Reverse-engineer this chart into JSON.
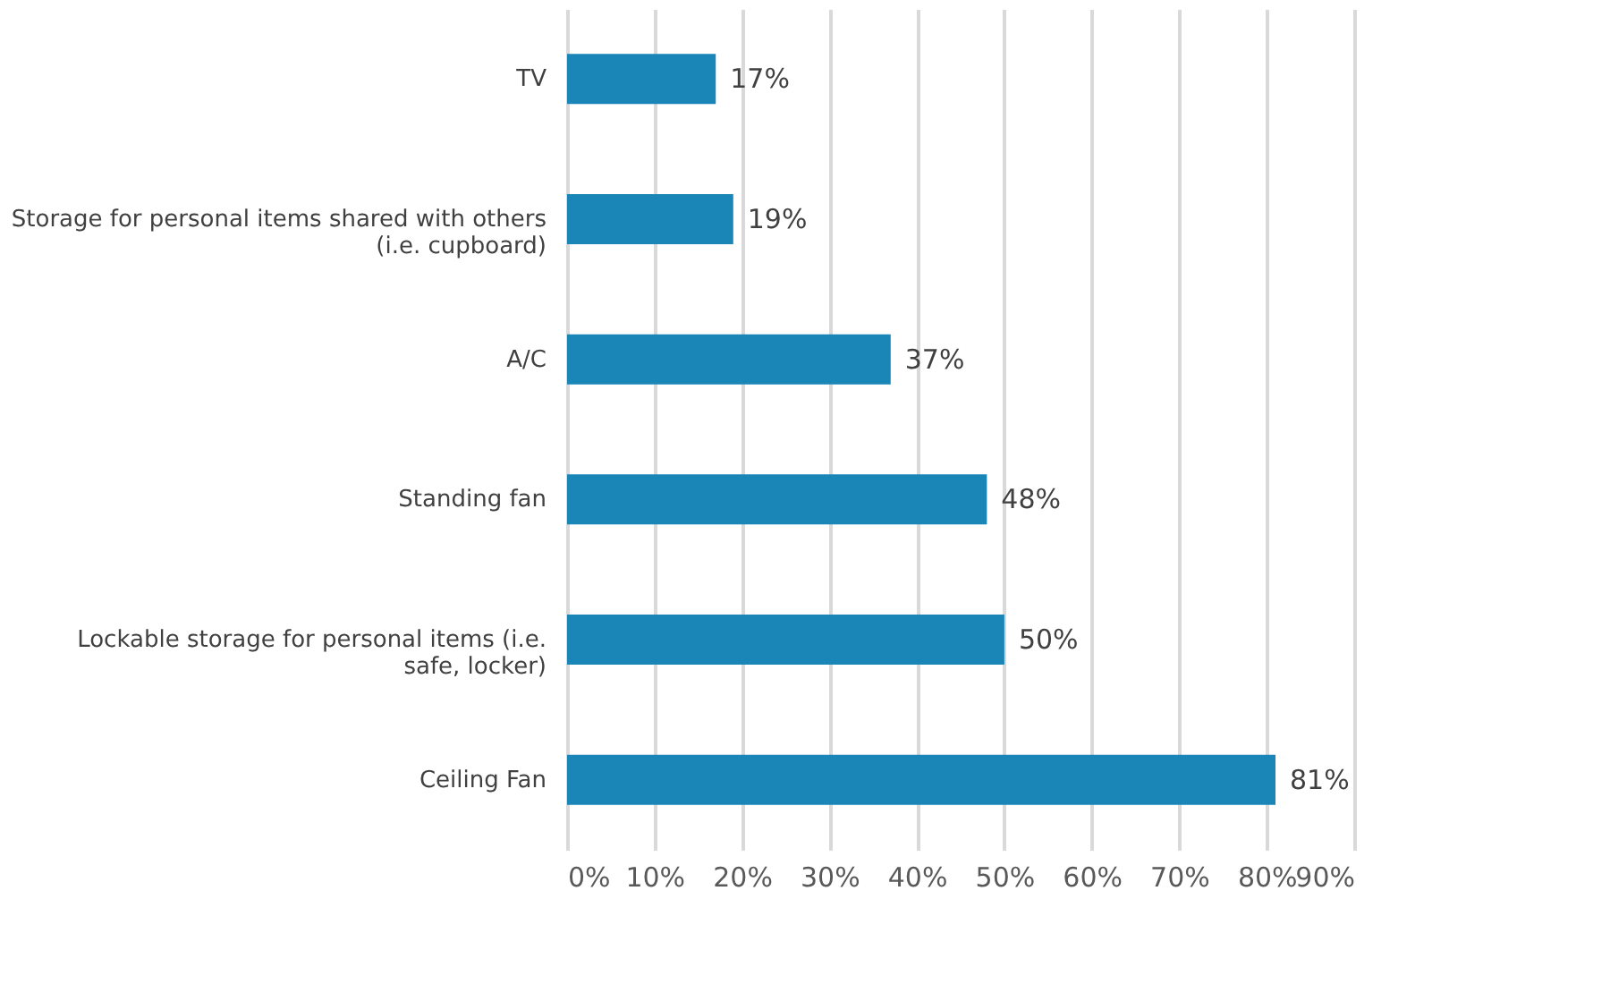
{
  "chart_data": {
    "type": "bar",
    "orientation": "horizontal",
    "categories": [
      "TV",
      "Storage for personal items shared with others (i.e. cupboard)",
      "A/C",
      "Standing fan",
      "Lockable storage for personal items (i.e. safe, locker)",
      "Ceiling Fan"
    ],
    "values": [
      17,
      19,
      37,
      48,
      50,
      81
    ],
    "value_labels": [
      "17%",
      "19%",
      "37%",
      "48%",
      "50%",
      "81%"
    ],
    "color": "#1a86b8",
    "xlim": [
      0,
      90
    ],
    "xticks": [
      {
        "value": 0,
        "label": "0%"
      },
      {
        "value": 10,
        "label": "10%"
      },
      {
        "value": 20,
        "label": "20%"
      },
      {
        "value": 30,
        "label": "30%"
      },
      {
        "value": 40,
        "label": "40%"
      },
      {
        "value": 50,
        "label": "50%"
      },
      {
        "value": 60,
        "label": "60%"
      },
      {
        "value": 70,
        "label": "70%"
      },
      {
        "value": 80,
        "label": "80%"
      },
      {
        "value": 90,
        "label": "90%"
      }
    ],
    "grid": "x"
  }
}
